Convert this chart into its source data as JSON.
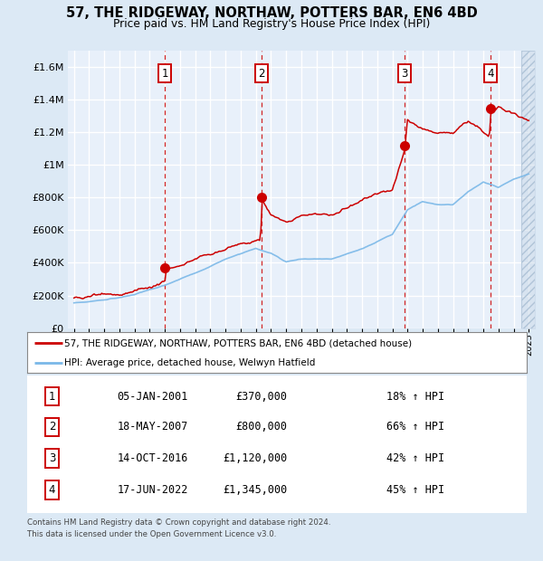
{
  "title1": "57, THE RIDGEWAY, NORTHAW, POTTERS BAR, EN6 4BD",
  "title2": "Price paid vs. HM Land Registry's House Price Index (HPI)",
  "hpi_label": "HPI: Average price, detached house, Welwyn Hatfield",
  "price_label": "57, THE RIDGEWAY, NORTHAW, POTTERS BAR, EN6 4BD (detached house)",
  "footer1": "Contains HM Land Registry data © Crown copyright and database right 2024.",
  "footer2": "This data is licensed under the Open Government Licence v3.0.",
  "ylim": [
    0,
    1700000
  ],
  "yticks": [
    0,
    200000,
    400000,
    600000,
    800000,
    1000000,
    1200000,
    1400000,
    1600000
  ],
  "xlim_start": 1994.6,
  "xlim_end": 2025.4,
  "bg_color": "#dce9f5",
  "plot_bg": "#e8f0fa",
  "grid_color": "#ffffff",
  "hpi_color": "#7ab8e8",
  "price_color": "#cc0000",
  "hatch_color": "#c8d8e8",
  "sales": [
    {
      "num": 1,
      "date": "05-JAN-2001",
      "price": 370000,
      "pct": "18%",
      "x": 2001.01
    },
    {
      "num": 2,
      "date": "18-MAY-2007",
      "price": 800000,
      "pct": "66%",
      "x": 2007.38
    },
    {
      "num": 3,
      "date": "14-OCT-2016",
      "price": 1120000,
      "pct": "42%",
      "x": 2016.79
    },
    {
      "num": 4,
      "date": "17-JUN-2022",
      "price": 1345000,
      "pct": "45%",
      "x": 2022.46
    }
  ]
}
